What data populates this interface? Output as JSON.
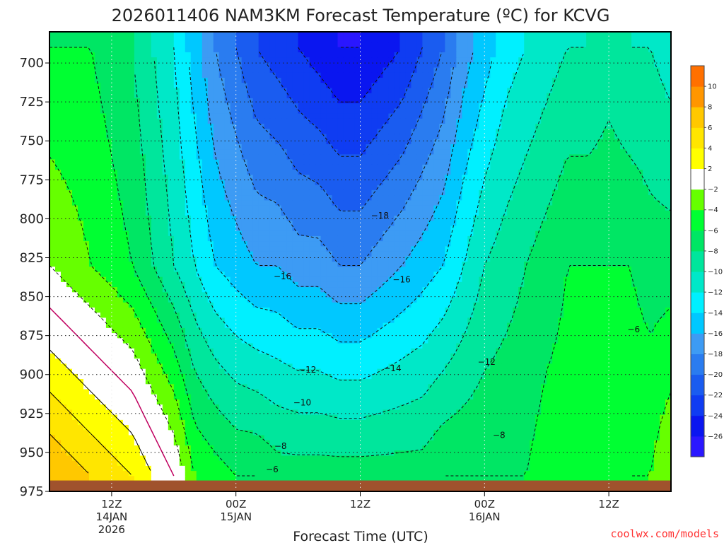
{
  "chart_data": {
    "type": "heatmap",
    "title": "2026011406 NAM3KM Forecast Temperature (ºC) for KCVG",
    "xlabel": "Forecast Time (UTC)",
    "ylabel": "",
    "y_ticks": [
      700,
      725,
      750,
      775,
      800,
      825,
      850,
      875,
      900,
      925,
      950,
      975
    ],
    "ylim": [
      975,
      680
    ],
    "x_ticks": [
      {
        "line1": "12Z",
        "line2": "14JAN",
        "line3": "2026"
      },
      {
        "line1": "00Z",
        "line2": "15JAN",
        "line3": ""
      },
      {
        "line1": "12Z",
        "line2": "",
        "line3": ""
      },
      {
        "line1": "00Z",
        "line2": "16JAN",
        "line3": ""
      },
      {
        "line1": "12Z",
        "line2": "",
        "line3": ""
      }
    ],
    "x_tick_hours": [
      12,
      24,
      36,
      48,
      60
    ],
    "xlim": [
      6,
      66
    ],
    "grid": true,
    "contour_interval": 2,
    "colorbar": {
      "levels": [
        -26,
        -24,
        -22,
        -20,
        -18,
        -16,
        -14,
        -12,
        -10,
        -8,
        -6,
        -4,
        -2,
        2,
        4,
        6,
        8,
        10
      ],
      "colors": [
        "#2a17ff",
        "#0a16f0",
        "#0f3cf2",
        "#1a5cf0",
        "#2a7cf0",
        "#3d9bf4",
        "#00c8ff",
        "#00f0ff",
        "#00e8c8",
        "#00e69c",
        "#00e664",
        "#00ff32",
        "#66ff00",
        "#ffffff",
        "#ffff00",
        "#ffe600",
        "#ffc800",
        "#ff9600",
        "#ff7000"
      ]
    },
    "contour_labels": [
      {
        "text": "−18",
        "x_hour": 37.9,
        "p": 798
      },
      {
        "text": "−16",
        "x_hour": 28.5,
        "p": 837
      },
      {
        "text": "−16",
        "x_hour": 40.0,
        "p": 839
      },
      {
        "text": "−14",
        "x_hour": 39.1,
        "p": 896
      },
      {
        "text": "−12",
        "x_hour": 30.9,
        "p": 897
      },
      {
        "text": "−12",
        "x_hour": 48.2,
        "p": 892
      },
      {
        "text": "−10",
        "x_hour": 30.4,
        "p": 918
      },
      {
        "text": "−8",
        "x_hour": 28.3,
        "p": 946
      },
      {
        "text": "−8",
        "x_hour": 49.4,
        "p": 939
      },
      {
        "text": "−6",
        "x_hour": 27.5,
        "p": 961
      },
      {
        "text": "−6",
        "x_hour": 62.4,
        "p": 871
      }
    ],
    "series": [
      {
        "top_temp": [
          -6,
          -6,
          -6,
          -7,
          -8,
          -10,
          -12,
          -15,
          -18,
          -20,
          -22,
          -23,
          -24,
          -25,
          -26,
          -26,
          -25,
          -24,
          -22,
          -20,
          -17,
          -15,
          -13,
          -12,
          -11,
          -10,
          -10,
          -9,
          -10,
          -10,
          -11
        ]
      },
      {
        "mid_temp": [
          -2,
          -3,
          -4,
          -5,
          -6,
          -8,
          -10,
          -12,
          -14,
          -15,
          -16,
          -16,
          -17,
          -17,
          -18,
          -18,
          -17,
          -16,
          -15,
          -14,
          -12,
          -10,
          -9,
          -8,
          -7,
          -6,
          -6,
          -6,
          -6,
          -7,
          -7
        ]
      },
      {
        "sfc_temp": [
          8,
          7,
          6,
          5,
          4,
          2,
          0,
          -4,
          -5,
          -6,
          -6,
          -7,
          -7,
          -7,
          -7,
          -7,
          -7,
          -7,
          -7,
          -6,
          -6,
          -6,
          -6,
          -6,
          -5,
          -5,
          -5,
          -5,
          -4,
          -4,
          -2
        ]
      }
    ]
  },
  "footer": {
    "credit": "coolwx.com/models"
  }
}
